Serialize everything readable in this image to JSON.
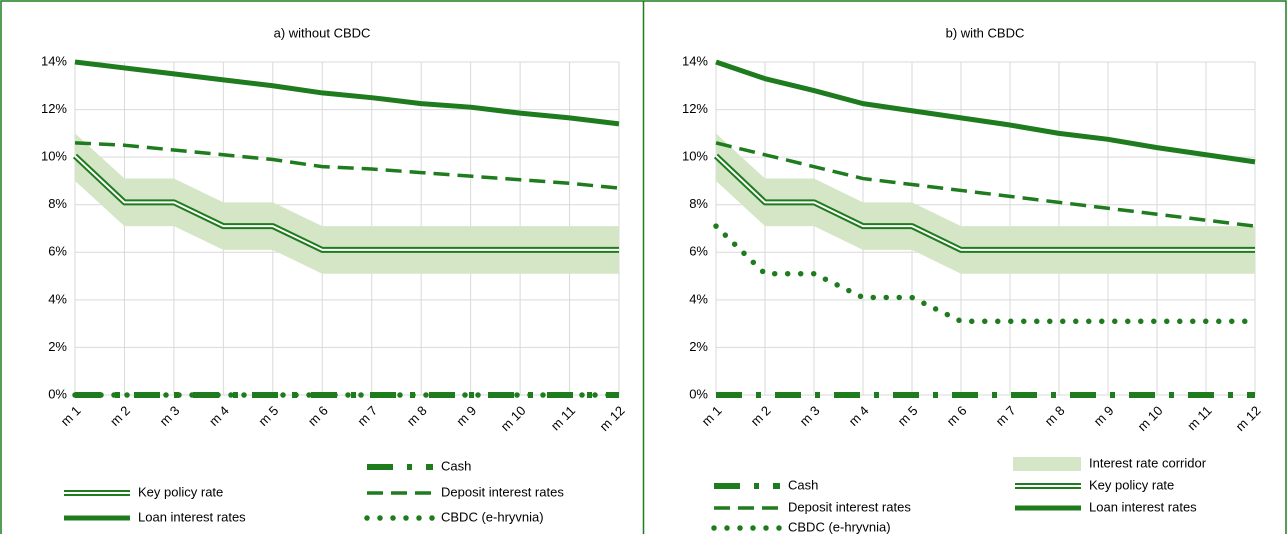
{
  "chart_data": [
    {
      "type": "line",
      "title": "a) without CBDC",
      "categories": [
        "m 1",
        "m 2",
        "m 3",
        "m 4",
        "m 5",
        "m 6",
        "m 7",
        "m 8",
        "m 9",
        "m 10",
        "m 11",
        "m 12"
      ],
      "ylim": [
        0,
        14
      ],
      "yticks": [
        {
          "value": 0,
          "label": "0%"
        },
        {
          "value": 2,
          "label": "2%"
        },
        {
          "value": 4,
          "label": "4%"
        },
        {
          "value": 6,
          "label": "6%"
        },
        {
          "value": 8,
          "label": "8%"
        },
        {
          "value": 10,
          "label": "10%"
        },
        {
          "value": 12,
          "label": "12%"
        },
        {
          "value": 14,
          "label": "14%"
        }
      ],
      "grid": true,
      "corridor": {
        "color": "#d5e6c6",
        "upper": [
          11,
          9.1,
          9.1,
          8.1,
          8.1,
          7.1,
          7.1,
          7.1,
          7.1,
          7.1,
          7.1,
          7.1
        ],
        "lower": [
          9,
          7.1,
          7.1,
          6.1,
          6.1,
          5.1,
          5.1,
          5.1,
          5.1,
          5.1,
          5.1,
          5.1
        ]
      },
      "series": [
        {
          "name": "Cash",
          "color": "#1e7b1e",
          "line_style": "dash-dot",
          "values": [
            0,
            0,
            0,
            0,
            0,
            0,
            0,
            0,
            0,
            0,
            0,
            0
          ]
        },
        {
          "name": "Key policy rate",
          "color": "#1e7b1e",
          "line_style": "double",
          "values": [
            10.05,
            8.1,
            8.1,
            7.1,
            7.1,
            6.1,
            6.1,
            6.1,
            6.1,
            6.1,
            6.1,
            6.1
          ]
        },
        {
          "name": "Deposit interest rates",
          "color": "#1e7b1e",
          "line_style": "dashed",
          "values": [
            10.6,
            10.5,
            10.3,
            10.1,
            9.9,
            9.6,
            9.5,
            9.35,
            9.2,
            9.05,
            8.9,
            8.7
          ]
        },
        {
          "name": "Loan interest rates",
          "color": "#1e7b1e",
          "line_style": "solid",
          "values": [
            14,
            13.75,
            13.5,
            13.25,
            13,
            12.7,
            12.5,
            12.25,
            12.1,
            11.85,
            11.65,
            11.4
          ]
        },
        {
          "name": "CBDC (e-hryvnia)",
          "color": "#1e7b1e",
          "line_style": "dotted",
          "values": [
            0,
            0,
            0,
            0,
            0,
            0,
            0,
            0,
            0,
            0,
            0,
            0
          ]
        }
      ]
    },
    {
      "type": "line",
      "title": "b) with CBDC",
      "categories": [
        "m 1",
        "m 2",
        "m 3",
        "m 4",
        "m 5",
        "m 6",
        "m 7",
        "m 8",
        "m 9",
        "m 10",
        "m 11",
        "m 12"
      ],
      "ylim": [
        0,
        14
      ],
      "yticks": [
        {
          "value": 0,
          "label": "0%"
        },
        {
          "value": 2,
          "label": "2%"
        },
        {
          "value": 4,
          "label": "4%"
        },
        {
          "value": 6,
          "label": "6%"
        },
        {
          "value": 8,
          "label": "8%"
        },
        {
          "value": 10,
          "label": "10%"
        },
        {
          "value": 12,
          "label": "12%"
        },
        {
          "value": 14,
          "label": "14%"
        }
      ],
      "grid": true,
      "corridor": {
        "name": "Interest rate corridor",
        "color": "#d5e6c6",
        "upper": [
          11,
          9.1,
          9.1,
          8.1,
          8.1,
          7.1,
          7.1,
          7.1,
          7.1,
          7.1,
          7.1,
          7.1
        ],
        "lower": [
          9,
          7.1,
          7.1,
          6.1,
          6.1,
          5.1,
          5.1,
          5.1,
          5.1,
          5.1,
          5.1,
          5.1
        ]
      },
      "series": [
        {
          "name": "Cash",
          "color": "#1e7b1e",
          "line_style": "dash-dot",
          "values": [
            0,
            0,
            0,
            0,
            0,
            0,
            0,
            0,
            0,
            0,
            0,
            0
          ]
        },
        {
          "name": "Key policy rate",
          "color": "#1e7b1e",
          "line_style": "double",
          "values": [
            10.05,
            8.1,
            8.1,
            7.1,
            7.1,
            6.1,
            6.1,
            6.1,
            6.1,
            6.1,
            6.1,
            6.1
          ]
        },
        {
          "name": "Deposit interest rates",
          "color": "#1e7b1e",
          "line_style": "dashed",
          "values": [
            10.6,
            10.1,
            9.6,
            9.1,
            8.85,
            8.6,
            8.35,
            8.1,
            7.85,
            7.6,
            7.35,
            7.1
          ]
        },
        {
          "name": "Loan interest rates",
          "color": "#1e7b1e",
          "line_style": "solid",
          "values": [
            14,
            13.3,
            12.8,
            12.25,
            11.95,
            11.65,
            11.35,
            11.0,
            10.75,
            10.4,
            10.1,
            9.8
          ]
        },
        {
          "name": "CBDC (e-hryvnia)",
          "color": "#1e7b1e",
          "line_style": "dotted",
          "values": [
            7.1,
            5.1,
            5.1,
            4.1,
            4.1,
            3.1,
            3.1,
            3.1,
            3.1,
            3.1,
            3.1,
            3.1
          ]
        }
      ]
    }
  ]
}
